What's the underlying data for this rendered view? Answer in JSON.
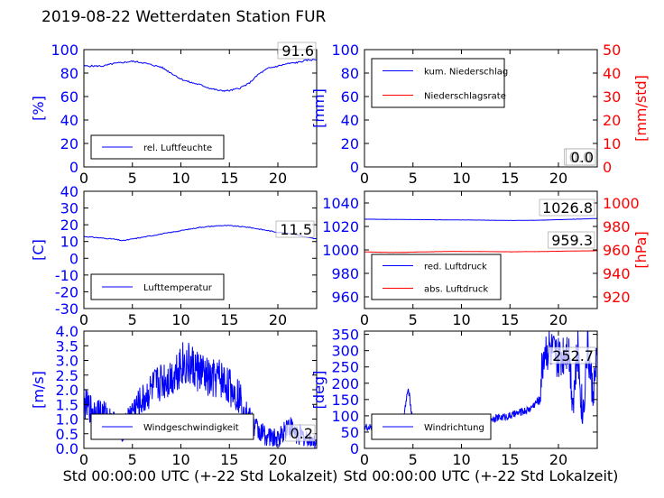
{
  "title": "2019-08-22 Wetterdaten Station FUR",
  "colors": {
    "blue": "#0000ff",
    "red": "#ff0000",
    "lightblue": "#8080ff"
  },
  "chart_data": [
    {
      "id": "humidity",
      "type": "line",
      "xlim": [
        0,
        24
      ],
      "xticks": [
        0,
        5,
        10,
        15,
        20
      ],
      "ylabel": "[%]",
      "ylim": [
        0,
        100
      ],
      "yticks": [
        0,
        20,
        40,
        60,
        80,
        100
      ],
      "legend": "bottom-left",
      "series": [
        {
          "name": "rel. Luftfeuchte",
          "color": "#0000ff",
          "x": [
            0,
            1,
            2,
            3,
            4,
            5,
            6,
            7,
            8,
            9,
            10,
            11,
            12,
            13,
            14,
            15,
            16,
            17,
            18,
            19,
            20,
            21,
            22,
            23,
            24
          ],
          "y": [
            86,
            86,
            86,
            88,
            89,
            90,
            89,
            87,
            85,
            80,
            75,
            72,
            70,
            67,
            65,
            65,
            67,
            71,
            79,
            84,
            86,
            88,
            89,
            91,
            91.6
          ]
        }
      ],
      "value_label": "91.6"
    },
    {
      "id": "precip",
      "type": "line",
      "xlim": [
        0,
        24
      ],
      "xticks": [
        0,
        5,
        10,
        15,
        20
      ],
      "ylabel": "[mm]",
      "ylim": [
        0,
        100
      ],
      "yticks": [
        0,
        20,
        40,
        60,
        80,
        100
      ],
      "ylabel2": "[mm/std]",
      "ylim2": [
        0,
        50
      ],
      "yticks2": [
        0,
        10,
        20,
        30,
        40,
        50
      ],
      "legend": "top-left",
      "series": [
        {
          "name": "kum. Niederschlag",
          "color": "#0000ff",
          "axis": "left",
          "x": [
            0,
            24
          ],
          "y": [
            0,
            0
          ]
        },
        {
          "name": "Niederschlagsrate",
          "color": "#ff0000",
          "axis": "right",
          "x": [
            0,
            24
          ],
          "y": [
            0,
            0
          ]
        }
      ],
      "value_labels": [
        "0.0",
        "0.0"
      ]
    },
    {
      "id": "temperature",
      "type": "line",
      "xlim": [
        0,
        24
      ],
      "xticks": [
        0,
        5,
        10,
        15,
        20
      ],
      "ylabel": "[C]",
      "ylim": [
        -30,
        40
      ],
      "yticks": [
        -30,
        -20,
        -10,
        0,
        10,
        20,
        30,
        40
      ],
      "legend": "bottom-left",
      "series": [
        {
          "name": "Lufttemperatur",
          "color": "#0000ff",
          "x": [
            0,
            1,
            2,
            3,
            4,
            5,
            6,
            7,
            8,
            9,
            10,
            11,
            12,
            13,
            14,
            15,
            16,
            17,
            18,
            19,
            20,
            21,
            22,
            23,
            24
          ],
          "y": [
            13,
            12.5,
            12,
            11.5,
            10.5,
            11.5,
            12.5,
            13.5,
            14.5,
            15.5,
            16.5,
            17.5,
            18.5,
            19,
            19.5,
            19.5,
            19,
            18.5,
            17.5,
            16.5,
            15.5,
            15,
            14,
            12.5,
            11.5
          ]
        }
      ],
      "value_label": "11.5"
    },
    {
      "id": "pressure",
      "type": "line",
      "xlim": [
        0,
        24
      ],
      "xticks": [
        0,
        5,
        10,
        15,
        20
      ],
      "ylim": [
        950,
        1050
      ],
      "yticks": [
        960,
        980,
        1000,
        1020,
        1040
      ],
      "ylabel2": "[hPa]",
      "ylim2": [
        910,
        1010
      ],
      "yticks2": [
        920,
        940,
        960,
        980,
        1000
      ],
      "legend": "bottom-left",
      "series": [
        {
          "name": "red. Luftdruck",
          "color": "#0000ff",
          "axis": "left",
          "x": [
            0,
            3,
            6,
            9,
            12,
            15,
            18,
            21,
            24
          ],
          "y": [
            1026.2,
            1026,
            1025.8,
            1025.6,
            1025.4,
            1025.1,
            1025.3,
            1026,
            1026.8
          ]
        },
        {
          "name": "abs. Luftdruck",
          "color": "#ff0000",
          "axis": "right",
          "x": [
            0,
            3,
            6,
            9,
            12,
            15,
            18,
            21,
            24
          ],
          "y": [
            958.3,
            957.8,
            958.3,
            958.7,
            958.6,
            958.4,
            958.6,
            959,
            959.3
          ]
        }
      ],
      "value_labels": [
        "1026.8",
        "959.3"
      ]
    },
    {
      "id": "windspeed",
      "type": "line",
      "xlim": [
        0,
        24
      ],
      "xticks": [
        0,
        5,
        10,
        15,
        20
      ],
      "ylabel": "[m/s]",
      "ylim": [
        0,
        4
      ],
      "yticks": [
        0.0,
        0.5,
        1.0,
        1.5,
        2.0,
        2.5,
        3.0,
        3.5,
        4.0
      ],
      "xlabel": "Std 00:00:00 UTC (+-22 Std Lokalzeit)",
      "legend": "bottom-left",
      "series": [
        {
          "name": "Windgeschwindigkeit",
          "color": "#0000ff",
          "x": [
            0,
            1,
            2,
            3,
            4,
            5,
            6,
            7,
            8,
            9,
            10,
            11,
            12,
            13,
            14,
            15,
            16,
            17,
            18,
            19,
            20,
            21,
            22,
            23,
            24
          ],
          "y": [
            1.5,
            1.3,
            1.2,
            0.9,
            0.6,
            1.3,
            1.6,
            2.0,
            2.3,
            2.4,
            2.9,
            2.8,
            2.6,
            2.3,
            2.4,
            2.1,
            1.8,
            1.0,
            0.6,
            0.4,
            0.3,
            0.8,
            0.5,
            0.3,
            0.2
          ]
        }
      ],
      "value_label": "0.2"
    },
    {
      "id": "winddir",
      "type": "line",
      "xlim": [
        0,
        24
      ],
      "xticks": [
        0,
        5,
        10,
        15,
        20
      ],
      "ylabel": "[deg]",
      "ylim": [
        0,
        360
      ],
      "yticks": [
        0,
        50,
        100,
        150,
        200,
        250,
        300,
        350
      ],
      "xlabel": "Std 00:00:00 UTC (+-22 Std Lokalzeit)",
      "legend": "bottom-left",
      "series": [
        {
          "name": "Windrichtung",
          "color": "#0000ff",
          "x": [
            0,
            1,
            2,
            3,
            4,
            4.5,
            5,
            6,
            7,
            8,
            9,
            10,
            11,
            12,
            13,
            14,
            15,
            16,
            17,
            18,
            18.5,
            19,
            20,
            21,
            21.5,
            22,
            22.5,
            23,
            23.5,
            24
          ],
          "y": [
            65,
            62,
            70,
            68,
            85,
            190,
            80,
            75,
            78,
            80,
            82,
            85,
            88,
            90,
            92,
            95,
            100,
            110,
            120,
            150,
            300,
            310,
            270,
            320,
            150,
            300,
            100,
            320,
            180,
            252.7
          ]
        }
      ],
      "value_label": "252.7"
    }
  ]
}
